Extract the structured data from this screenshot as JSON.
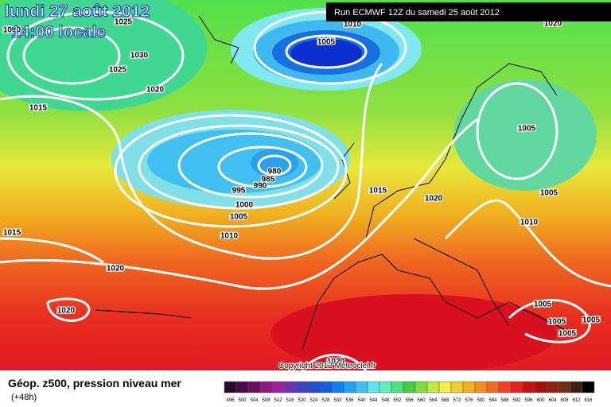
{
  "header": {
    "date": "lundi 27 août 2012",
    "time": "14:00 locale",
    "run": "Run ECMWF 12Z du samedi 25 août 2012"
  },
  "isobar_labels": [
    "1030",
    "1025",
    "1030",
    "1025",
    "1020",
    "1015",
    "1010",
    "1005",
    "1020",
    "1005",
    "980",
    "985",
    "990",
    "995",
    "1000",
    "1005",
    "1010",
    "1015",
    "1020",
    "1005",
    "1010",
    "1015",
    "1020",
    "1020",
    "1005",
    "1005",
    "1005",
    "1005",
    "1020"
  ],
  "copyright": "Copyright 2012 Meteociel.fr",
  "legend": {
    "title": "Géop. z500, pression niveau mer",
    "lead": "(+48h)",
    "scale": [
      496,
      500,
      504,
      508,
      512,
      516,
      520,
      524,
      528,
      532,
      536,
      540,
      544,
      548,
      552,
      556,
      560,
      564,
      568,
      572,
      576,
      580,
      584,
      588,
      592,
      596,
      600,
      604,
      608,
      612,
      616
    ]
  }
}
